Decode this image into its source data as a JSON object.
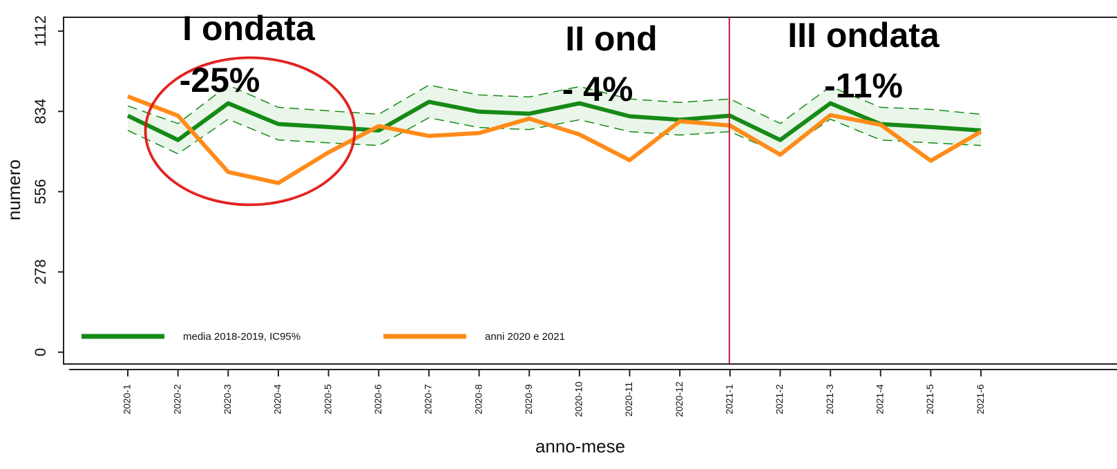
{
  "chart_data": {
    "type": "line",
    "x_label": "anno-mese",
    "y_label": "numero",
    "categories": [
      "2020-1",
      "2020-2",
      "2020-3",
      "2020-4",
      "2020-5",
      "2020-6",
      "2020-7",
      "2020-8",
      "2020-9",
      "2020-10",
      "2020-11",
      "2020-12",
      "2021-1",
      "2021-2",
      "2021-3",
      "2021-4",
      "2021-5",
      "2021-6"
    ],
    "series": [
      {
        "name": "media 2018-2019, IC95%",
        "color": "#168a16",
        "values": [
          819,
          735,
          862,
          790,
          780,
          768,
          867,
          833,
          826,
          862,
          817,
          805,
          819,
          735,
          862,
          790,
          780,
          768
        ],
        "upper": [
          853,
          792,
          925,
          848,
          836,
          824,
          925,
          891,
          884,
          920,
          877,
          865,
          877,
          792,
          920,
          848,
          841,
          824
        ],
        "lower": [
          768,
          687,
          807,
          735,
          725,
          716,
          812,
          778,
          771,
          805,
          764,
          752,
          764,
          687,
          807,
          735,
          725,
          716
        ],
        "band_color": "#eaf6ea"
      },
      {
        "name": "anni 2020 e 2021",
        "color": "#ff8c1a",
        "values": [
          886,
          819,
          624,
          586,
          692,
          783,
          749,
          759,
          809,
          754,
          665,
          800,
          785,
          684,
          821,
          788,
          663,
          764
        ]
      }
    ],
    "ylim": [
      -41,
      1160
    ],
    "yticks": [
      0,
      278,
      556,
      834,
      1112
    ],
    "vline": "2021-1",
    "vline_color": "#c8143c",
    "annotations": [
      "I ondata",
      "-25%",
      "II ond",
      "- 4%",
      "III ondata",
      "-11%"
    ]
  }
}
